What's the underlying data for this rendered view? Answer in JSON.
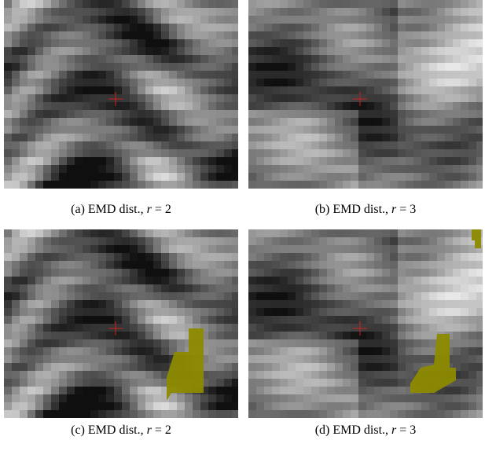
{
  "panels": [
    {
      "label": "(a)",
      "caption": "EMD dist.,",
      "variable": "r",
      "rest": "= 2"
    },
    {
      "label": "(b)",
      "caption": "EMD dist.,",
      "variable": "r",
      "rest": "= 3"
    },
    {
      "label": "(c)",
      "caption": "EMD dist.,",
      "variable": "r",
      "rest": "= 2"
    },
    {
      "label": "(d)",
      "caption": "EMD dist.,",
      "variable": "r",
      "rest": "= 3"
    }
  ]
}
